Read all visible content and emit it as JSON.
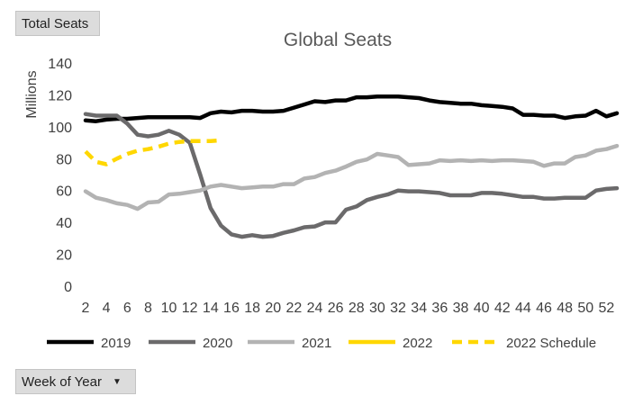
{
  "buttons": {
    "total_seats": "Total Seats",
    "week_filter": "Week of Year"
  },
  "chart_data": {
    "type": "line",
    "title": "Global Seats",
    "xlabel": "",
    "ylabel": "Millions",
    "ylim": [
      0,
      140
    ],
    "yticks": [
      0,
      20,
      40,
      60,
      80,
      100,
      120,
      140
    ],
    "xlim": [
      2,
      53
    ],
    "xticks": [
      2,
      4,
      6,
      8,
      10,
      12,
      14,
      16,
      18,
      20,
      22,
      24,
      26,
      28,
      30,
      32,
      34,
      36,
      38,
      40,
      42,
      44,
      46,
      48,
      50,
      52
    ],
    "grid": false,
    "legend_position": "bottom",
    "series": [
      {
        "name": "2019",
        "color": "#000000",
        "dash": "solid",
        "x": [
          2,
          3,
          4,
          5,
          6,
          7,
          8,
          9,
          10,
          11,
          12,
          13,
          14,
          15,
          16,
          17,
          18,
          19,
          20,
          21,
          22,
          23,
          24,
          25,
          26,
          27,
          28,
          29,
          30,
          31,
          32,
          33,
          34,
          35,
          36,
          37,
          38,
          39,
          40,
          41,
          42,
          43,
          44,
          45,
          46,
          47,
          48,
          49,
          50,
          51,
          52,
          53
        ],
        "values": [
          104,
          103.5,
          104.5,
          105,
          105,
          105.5,
          106,
          106,
          106,
          106,
          106,
          105.5,
          108.5,
          109.5,
          109,
          110,
          110,
          109.5,
          109.5,
          110,
          112,
          114,
          116,
          115.5,
          116.5,
          116.5,
          118.5,
          118.5,
          119,
          119,
          119,
          118.5,
          118,
          116.5,
          115.5,
          115,
          114.5,
          114.5,
          113.5,
          113,
          112.5,
          111.5,
          107.5,
          107.5,
          107,
          107,
          105.5,
          106.5,
          107,
          110,
          106.5,
          108.5
        ]
      },
      {
        "name": "2020",
        "color": "#6b6a6b",
        "dash": "solid",
        "x": [
          2,
          3,
          4,
          5,
          6,
          7,
          8,
          9,
          10,
          11,
          12,
          13,
          14,
          15,
          16,
          17,
          18,
          19,
          20,
          21,
          22,
          23,
          24,
          25,
          26,
          27,
          28,
          29,
          30,
          31,
          32,
          33,
          34,
          35,
          36,
          37,
          38,
          39,
          40,
          41,
          42,
          43,
          44,
          45,
          46,
          47,
          48,
          49,
          50,
          51,
          52,
          53
        ],
        "values": [
          108,
          107,
          107,
          107,
          102,
          95,
          94,
          95,
          97.5,
          95,
          90,
          70,
          49,
          38,
          32.5,
          31,
          32,
          31,
          31.5,
          33.5,
          35,
          37,
          37.5,
          40,
          40,
          48,
          50,
          54,
          56,
          57.5,
          60,
          59.5,
          59.5,
          59,
          58.5,
          57,
          57,
          57,
          58.5,
          58.5,
          58,
          57,
          56,
          56,
          55,
          55,
          55.5,
          55.5,
          55.5,
          60,
          61,
          61.5
        ]
      },
      {
        "name": "2021",
        "color": "#b3b3b3",
        "dash": "solid",
        "x": [
          2,
          3,
          4,
          5,
          6,
          7,
          8,
          9,
          10,
          11,
          12,
          13,
          14,
          15,
          16,
          17,
          18,
          19,
          20,
          21,
          22,
          23,
          24,
          25,
          26,
          27,
          28,
          29,
          30,
          31,
          32,
          33,
          34,
          35,
          36,
          37,
          38,
          39,
          40,
          41,
          42,
          43,
          44,
          45,
          46,
          47,
          48,
          49,
          50,
          51,
          52,
          53
        ],
        "values": [
          59.5,
          55.5,
          54,
          52,
          51,
          48.5,
          52.5,
          53,
          57.5,
          58,
          59,
          60,
          62.5,
          63.5,
          62.5,
          61.5,
          62,
          62.5,
          62.5,
          64,
          64,
          67.5,
          68.5,
          71,
          72.5,
          75,
          78,
          79.5,
          83,
          82,
          81,
          76,
          76.5,
          77,
          79,
          78.5,
          79,
          78.5,
          79,
          78.5,
          79,
          79,
          78.5,
          78,
          75.5,
          77,
          77,
          81,
          82,
          85,
          86,
          88
        ]
      },
      {
        "name": "2022",
        "color": "#ffd700",
        "dash": "solid",
        "x": [],
        "values": []
      },
      {
        "name": "2022 Schedule",
        "color": "#ffd700",
        "dash": "dashed",
        "x": [
          2,
          3,
          4,
          5,
          6,
          7,
          8,
          9,
          10,
          11,
          12,
          13,
          14,
          15
        ],
        "values": [
          84.5,
          78,
          76.5,
          80,
          83,
          85,
          86,
          87.5,
          89.5,
          90.5,
          91,
          91,
          91,
          91.5
        ]
      }
    ]
  }
}
